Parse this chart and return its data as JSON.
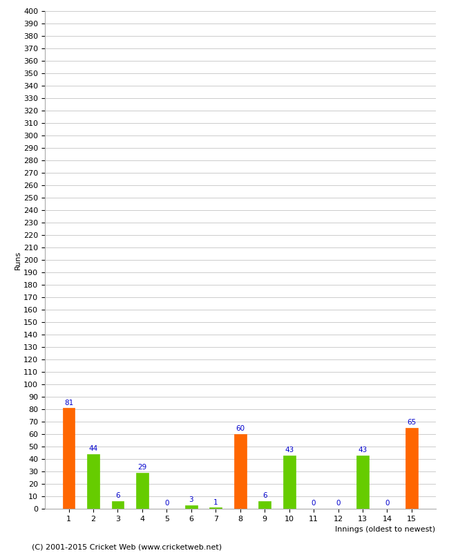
{
  "xlabel": "Innings (oldest to newest)",
  "ylabel": "Runs",
  "innings": [
    1,
    2,
    3,
    4,
    5,
    6,
    7,
    8,
    9,
    10,
    11,
    12,
    13,
    14,
    15
  ],
  "values": [
    81,
    44,
    6,
    29,
    0,
    3,
    1,
    60,
    6,
    43,
    0,
    0,
    43,
    0,
    65
  ],
  "colors": [
    "#ff6600",
    "#66cc00",
    "#66cc00",
    "#66cc00",
    "#66cc00",
    "#66cc00",
    "#66cc00",
    "#ff6600",
    "#66cc00",
    "#66cc00",
    "#66cc00",
    "#66cc00",
    "#66cc00",
    "#66cc00",
    "#ff6600"
  ],
  "ylim": [
    0,
    400
  ],
  "ytick_step": 10,
  "bar_width": 0.5,
  "background_color": "#ffffff",
  "grid_color": "#cccccc",
  "label_color": "#0000cc",
  "footer": "(C) 2001-2015 Cricket Web (www.cricketweb.net)",
  "footer_fontsize": 8,
  "axis_fontsize": 8,
  "label_fontsize": 7.5
}
